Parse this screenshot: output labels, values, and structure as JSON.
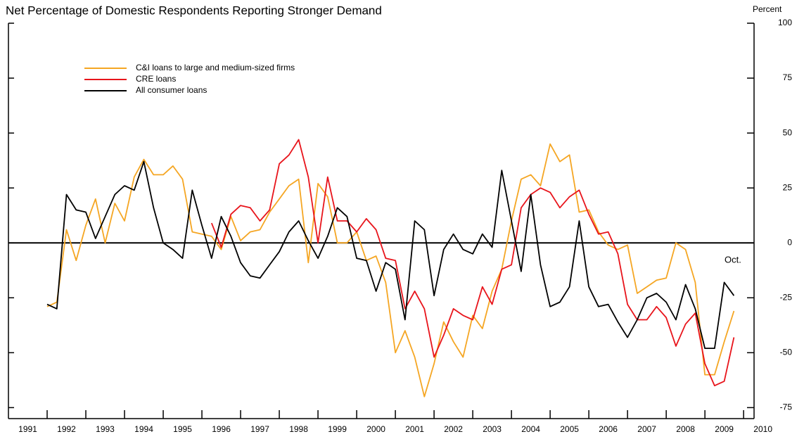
{
  "chart_data": {
    "type": "line",
    "title": "Net Percentage of Domestic Respondents Reporting Stronger Demand",
    "y_axis_label": "Percent",
    "annotation": "Oct.",
    "x": [
      1992,
      1992.25,
      1992.5,
      1992.75,
      1993,
      1993.25,
      1993.5,
      1993.75,
      1994,
      1994.25,
      1994.5,
      1994.75,
      1995,
      1995.25,
      1995.5,
      1995.75,
      1996,
      1996.25,
      1996.5,
      1996.75,
      1997,
      1997.25,
      1997.5,
      1997.75,
      1998,
      1998.25,
      1998.5,
      1998.75,
      1999,
      1999.25,
      1999.5,
      1999.75,
      2000,
      2000.25,
      2000.5,
      2000.75,
      2001,
      2001.25,
      2001.5,
      2001.75,
      2002,
      2002.25,
      2002.5,
      2002.75,
      2003,
      2003.25,
      2003.5,
      2003.75,
      2004,
      2004.25,
      2004.5,
      2004.75,
      2005,
      2005.25,
      2005.5,
      2005.75,
      2006,
      2006.25,
      2006.5,
      2006.75,
      2007,
      2007.25,
      2007.5,
      2007.75,
      2008,
      2008.25,
      2008.5,
      2008.75,
      2009,
      2009.25,
      2009.5,
      2009.75
    ],
    "series": [
      {
        "name": "C&I loans to large and medium-sized firms",
        "color": "#f5a623",
        "values": [
          -29,
          -27,
          6,
          -8,
          8,
          20,
          0,
          18,
          10,
          30,
          38,
          31,
          31,
          35,
          29,
          5,
          4,
          3,
          -3,
          12,
          1,
          5,
          6,
          14,
          20,
          26,
          29,
          -9,
          27,
          21,
          0,
          0,
          5,
          -8,
          -6,
          -18,
          -50,
          -40,
          -52,
          -70,
          -55,
          -36,
          -45,
          -52,
          -33,
          -39,
          -22,
          -12,
          10,
          29,
          31,
          26,
          45,
          37,
          40,
          14,
          15,
          5,
          -1,
          -3,
          -1,
          -23,
          -20,
          -17,
          -16,
          0,
          -3,
          -18,
          -60,
          -60,
          -45,
          -31
        ]
      },
      {
        "name": "CRE loans",
        "color": "#e8141b",
        "values": [
          null,
          null,
          null,
          null,
          null,
          null,
          null,
          null,
          null,
          null,
          null,
          null,
          null,
          null,
          null,
          null,
          null,
          9,
          -2,
          13,
          17,
          16,
          10,
          15,
          36,
          40,
          47,
          30,
          0,
          30,
          10,
          10,
          5,
          11,
          6,
          -7,
          -8,
          -30,
          -22,
          -30,
          -52,
          -42,
          -30,
          -33,
          -35,
          -20,
          -28,
          -12,
          -10,
          16,
          22,
          25,
          23,
          16,
          21,
          24,
          13,
          4,
          5,
          -5,
          -28,
          -35,
          -35,
          -29,
          -34,
          -47,
          -37,
          -32,
          -55,
          -65,
          -63,
          -43
        ]
      },
      {
        "name": "All consumer loans",
        "color": "#000000",
        "values": [
          -28,
          -30,
          22,
          15,
          14,
          2,
          12,
          22,
          26,
          24,
          37,
          16,
          0,
          -3,
          -7,
          24,
          8,
          -7,
          12,
          3,
          -9,
          -15,
          -16,
          -10,
          -4,
          5,
          10,
          1,
          -7,
          3,
          16,
          12,
          -7,
          -8,
          -22,
          -9,
          -12,
          -35,
          10,
          6,
          -24,
          -3,
          4,
          -3,
          -5,
          4,
          -2,
          33,
          10,
          -13,
          22,
          -10,
          -29,
          -27,
          -20,
          10,
          -20,
          -29,
          -28,
          -36,
          -43,
          -35,
          -25,
          -23,
          -27,
          -35,
          -19,
          -30,
          -48,
          -48,
          -18,
          -24
        ]
      }
    ],
    "xlim": [
      1991,
      2010.27
    ],
    "xticks": [
      1991,
      1992,
      1993,
      1994,
      1995,
      1996,
      1997,
      1998,
      1999,
      2000,
      2001,
      2002,
      2003,
      2004,
      2005,
      2006,
      2007,
      2008,
      2009,
      2010
    ],
    "ylim": [
      -80,
      100
    ],
    "yticks": [
      100,
      75,
      50,
      25,
      0,
      -25,
      -50,
      -75
    ],
    "y_axis_side": "right",
    "zero_line": true,
    "legend": "top-left"
  }
}
